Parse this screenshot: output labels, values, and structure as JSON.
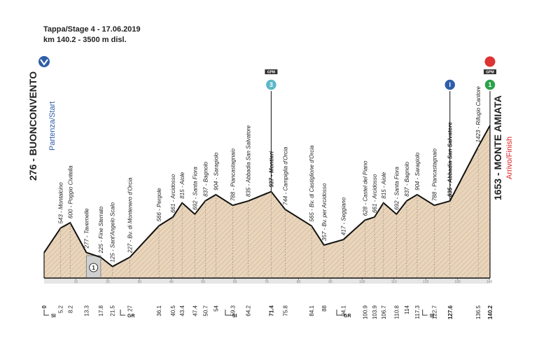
{
  "header": {
    "title": "Tappa/Stage 4 - 17.06.2019",
    "subtitle": "km 140.2 - 3500 m disl."
  },
  "chart_data": {
    "type": "area",
    "x": [
      0.0,
      5.2,
      8.2,
      13.3,
      17.8,
      21.5,
      27.0,
      36.1,
      40.5,
      43.4,
      47.4,
      50.7,
      54.0,
      59.3,
      64.2,
      71.4,
      75.8,
      84.1,
      88.0,
      94.1,
      100.9,
      103.9,
      106.7,
      110.8,
      114.0,
      117.3,
      122.7,
      127.6,
      136.5,
      140.2
    ],
    "values": [
      276,
      543,
      600,
      277,
      225,
      125,
      227,
      566,
      661,
      815,
      692,
      837,
      904,
      788,
      835,
      937,
      744,
      565,
      357,
      417,
      628,
      661,
      815,
      692,
      837,
      904,
      788,
      835,
      1423,
      1653
    ],
    "point_labels": [
      "276 - BUONCONVENTO",
      "543 - Montalcino",
      "600 - Poggio Civitella",
      "277 - Tavernelle",
      "225 - Fine Sterrato",
      "125 - Sant'Angelo Scalo",
      "227 - Bv. di Montenero d'Orcia",
      "566 - Pergole",
      "661 - Arcidosso",
      "815 - Aiole",
      "692 - Santa Fiora",
      "837 - Bagnolo",
      "904 - Saragiolo",
      "788 - Piancastagnaio",
      "835 - Abbadia San Salvatore",
      "937 - Montieri",
      "744 - Campiglia d'Orcia",
      "565 - Bv. di Castiglione d'Orcia",
      "357 - Bv. per Arcidosso",
      "417 - Seggiano",
      "628 - Castel del Piano",
      "661 - Arcidosso",
      "815 - Aiole",
      "692 - Santa Fiora",
      "837 - Bagnolo",
      "904 - Saragiolo",
      "788 - Piancastagnaio",
      "835 - Abbadia San Salvatore",
      "1423 - Rifugio Cantore",
      "1653 - MONTE AMIATA"
    ],
    "start_note": "Partenza/Start",
    "finish_note": "Arrivo/Finish",
    "xlim": [
      0,
      140.2
    ],
    "ylim": [
      0,
      1700
    ],
    "xticks": [
      10,
      20,
      30,
      40,
      50,
      60,
      70,
      80,
      90,
      100,
      110,
      120,
      130,
      140
    ],
    "color": "#e9d5bb",
    "sectors": [
      {
        "from": 13.3,
        "to": 17.8,
        "label": "1"
      }
    ],
    "markers": [
      {
        "km": 71.4,
        "tag": "GPM",
        "symbol": "3",
        "color": "#5ab7c8"
      },
      {
        "km": 127.6,
        "symbol": "I",
        "color": "#2f5ea8"
      },
      {
        "km": 140.2,
        "tag": "GPM",
        "symbol": "1",
        "color": "#2ca24a"
      }
    ],
    "regions": [
      {
        "km": 0,
        "label": "SI"
      },
      {
        "km": 24,
        "label": "GR"
      },
      {
        "km": 57,
        "label": "SI"
      },
      {
        "km": 92,
        "label": "GR"
      },
      {
        "km": 119,
        "label": "SI"
      }
    ]
  }
}
